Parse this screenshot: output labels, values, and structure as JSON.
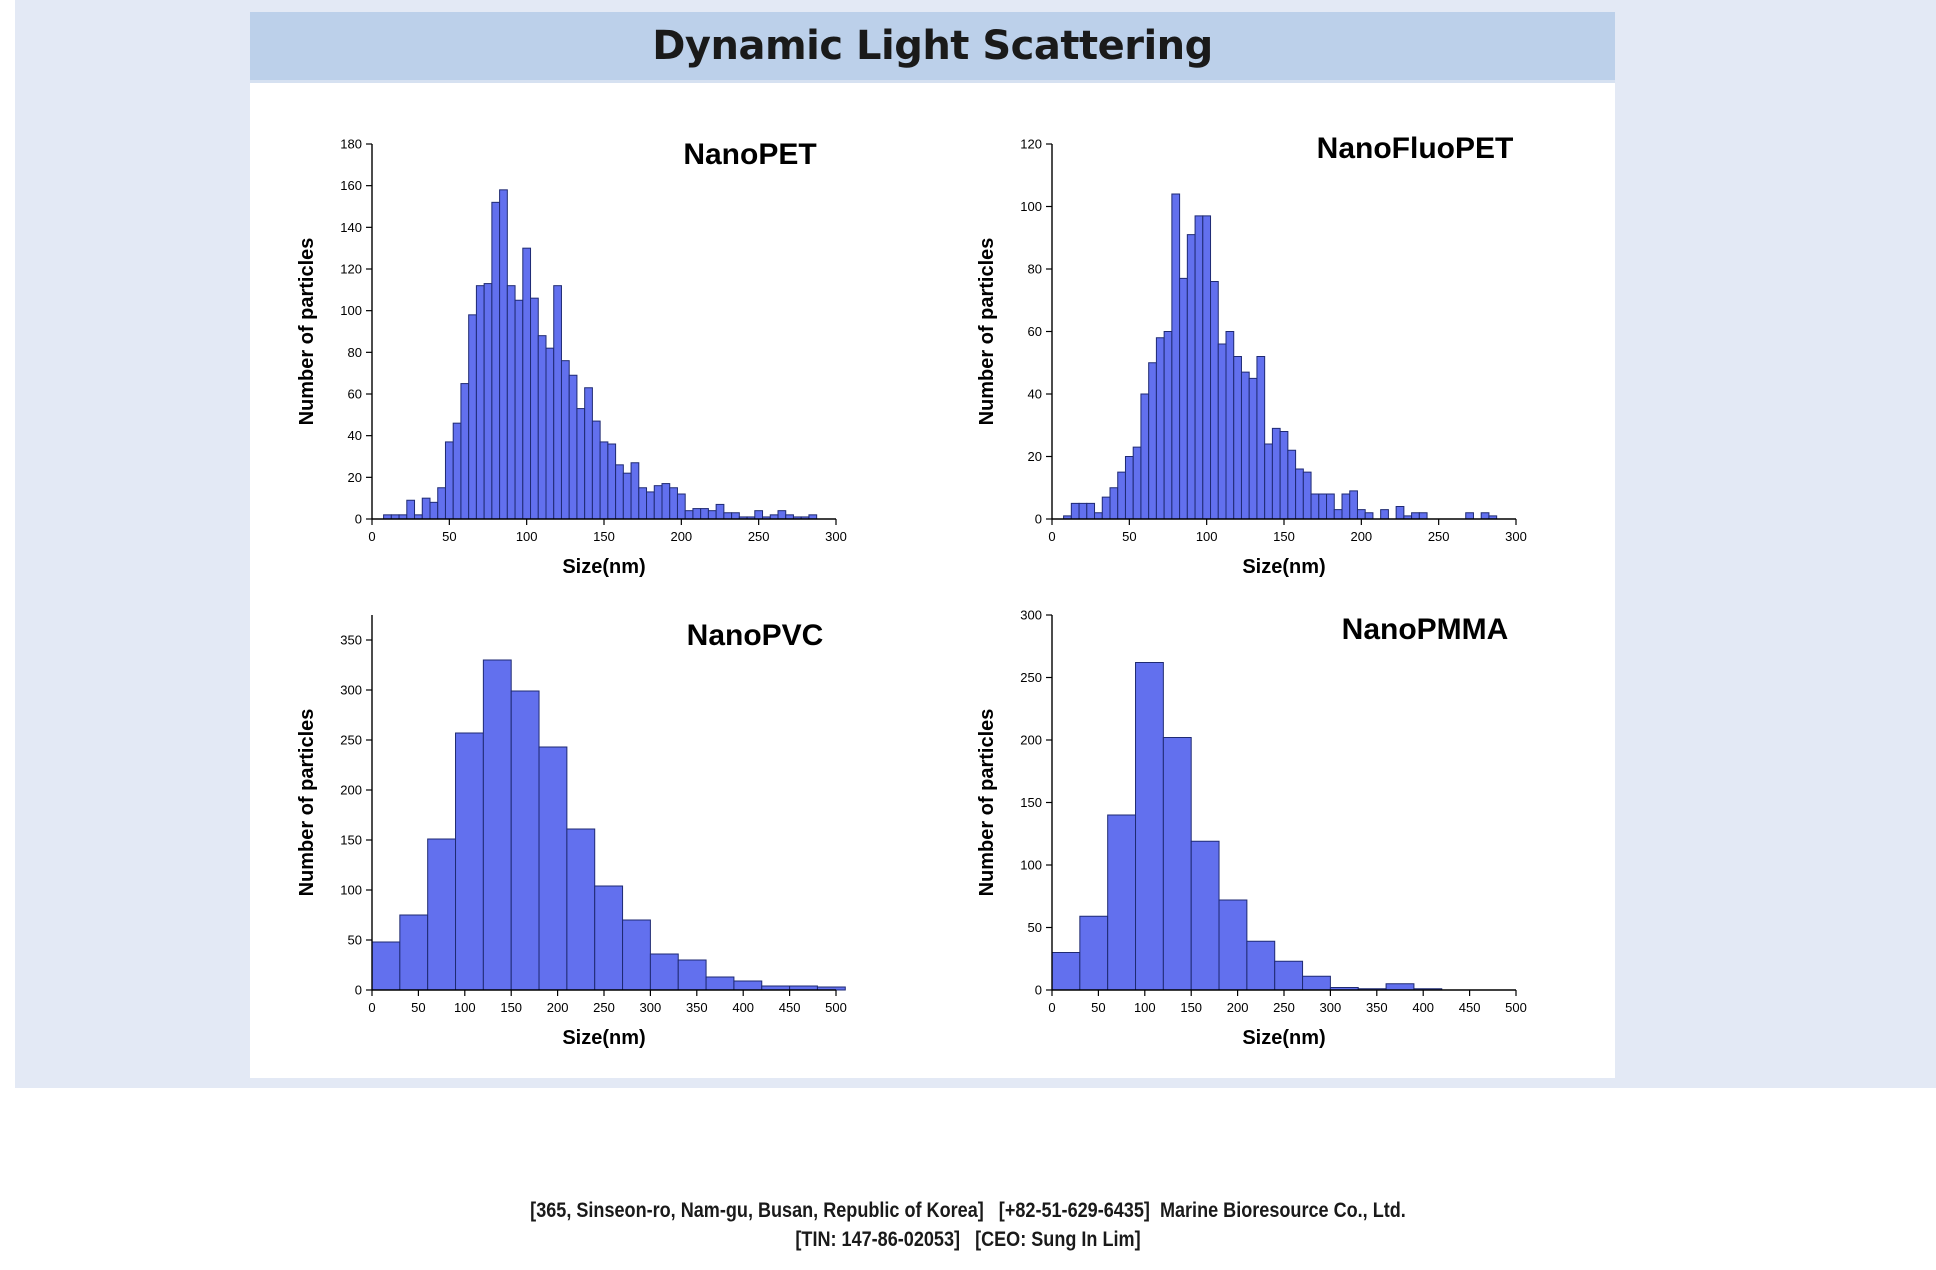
{
  "header": {
    "title": "Dynamic Light Scattering"
  },
  "footer": {
    "line1": "[365, Sinseon-ro, Nam-gu, Busan, Republic of Korea]   [+82-51-629-6435]  Marine Bioresource Co., Ltd.",
    "line2": "[TIN: 147-86-02053]   [CEO: Sung In Lim]"
  },
  "colors": {
    "bar_fill": "#6270ee",
    "bar_edge": "#1f2a73",
    "title_bar": "#bcd0ea",
    "backdrop": "#e3e9f5"
  },
  "chart_data": [
    {
      "type": "bar",
      "title": "NanoPET",
      "xlabel": "Size(nm)",
      "ylabel": "Number of particles",
      "xlim": [
        0,
        300
      ],
      "ylim": [
        0,
        180
      ],
      "xticks": [
        0,
        50,
        100,
        150,
        200,
        250,
        300
      ],
      "yticks": [
        0,
        20,
        40,
        60,
        80,
        100,
        120,
        140,
        160,
        180
      ],
      "bin_width": 5,
      "x": [
        10,
        15,
        20,
        25,
        30,
        35,
        40,
        45,
        50,
        55,
        60,
        65,
        70,
        75,
        80,
        85,
        90,
        95,
        100,
        105,
        110,
        115,
        120,
        125,
        130,
        135,
        140,
        145,
        150,
        155,
        160,
        165,
        170,
        175,
        180,
        185,
        190,
        195,
        200,
        205,
        210,
        215,
        220,
        225,
        230,
        235,
        240,
        245,
        250,
        255,
        260,
        265,
        270,
        275,
        280,
        285
      ],
      "values": [
        2,
        2,
        2,
        9,
        2,
        10,
        8,
        15,
        37,
        46,
        65,
        98,
        112,
        113,
        152,
        158,
        112,
        105,
        130,
        106,
        88,
        82,
        112,
        76,
        69,
        53,
        63,
        47,
        37,
        36,
        26,
        22,
        27,
        15,
        13,
        16,
        17,
        15,
        12,
        4,
        5,
        5,
        4,
        7,
        3,
        3,
        1,
        1,
        4,
        1,
        2,
        4,
        2,
        1,
        1,
        2
      ]
    },
    {
      "type": "bar",
      "title": "NanoFluoPET",
      "xlabel": "Size(nm)",
      "ylabel": "Number of particles",
      "xlim": [
        0,
        300
      ],
      "ylim": [
        0,
        120
      ],
      "xticks": [
        0,
        50,
        100,
        150,
        200,
        250,
        300
      ],
      "yticks": [
        0,
        20,
        40,
        60,
        80,
        100,
        120
      ],
      "bin_width": 5,
      "x": [
        10,
        15,
        20,
        25,
        30,
        35,
        40,
        45,
        50,
        55,
        60,
        65,
        70,
        75,
        80,
        85,
        90,
        95,
        100,
        105,
        110,
        115,
        120,
        125,
        130,
        135,
        140,
        145,
        150,
        155,
        160,
        165,
        170,
        175,
        180,
        185,
        190,
        195,
        200,
        205,
        210,
        215,
        220,
        225,
        230,
        235,
        240,
        245,
        250,
        255,
        260,
        265,
        270,
        275,
        280,
        285
      ],
      "values": [
        1,
        5,
        5,
        5,
        2,
        7,
        10,
        15,
        20,
        23,
        40,
        50,
        58,
        60,
        104,
        77,
        91,
        97,
        97,
        76,
        56,
        60,
        52,
        47,
        45,
        52,
        24,
        29,
        28,
        22,
        16,
        15,
        8,
        8,
        8,
        3,
        8,
        9,
        3,
        2,
        0,
        3,
        0,
        4,
        1,
        2,
        2,
        0,
        0,
        0,
        0,
        0,
        2,
        0,
        2,
        1
      ]
    },
    {
      "type": "bar",
      "title": "NanoPVC",
      "xlabel": "Size(nm)",
      "ylabel": "Number of particles",
      "xlim": [
        0,
        500
      ],
      "ylim": [
        0,
        375
      ],
      "xticks": [
        0,
        50,
        100,
        150,
        200,
        250,
        300,
        350,
        400,
        450,
        500
      ],
      "yticks": [
        0,
        50,
        100,
        150,
        200,
        250,
        300,
        350
      ],
      "bin_width": 30,
      "x": [
        15,
        45,
        75,
        105,
        135,
        165,
        195,
        225,
        255,
        285,
        315,
        345,
        375,
        405,
        435,
        465,
        495
      ],
      "values": [
        48,
        75,
        151,
        257,
        330,
        299,
        243,
        161,
        104,
        70,
        36,
        30,
        13,
        9,
        4,
        4,
        3
      ]
    },
    {
      "type": "bar",
      "title": "NanoPMMA",
      "xlabel": "Size(nm)",
      "ylabel": "Number of particles",
      "xlim": [
        0,
        500
      ],
      "ylim": [
        0,
        300
      ],
      "xticks": [
        0,
        50,
        100,
        150,
        200,
        250,
        300,
        350,
        400,
        450,
        500
      ],
      "yticks": [
        0,
        50,
        100,
        150,
        200,
        250,
        300
      ],
      "bin_width": 30,
      "x": [
        15,
        45,
        75,
        105,
        135,
        165,
        195,
        225,
        255,
        285,
        315,
        345,
        375,
        405,
        435,
        465,
        495
      ],
      "values": [
        30,
        59,
        140,
        262,
        202,
        119,
        72,
        39,
        23,
        11,
        2,
        1,
        5,
        1,
        0,
        0,
        0
      ]
    }
  ]
}
